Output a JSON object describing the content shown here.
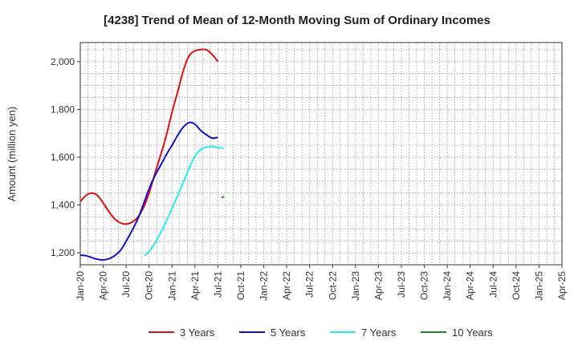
{
  "chart_data": {
    "type": "line",
    "title": "[4238]  Trend of Mean of 12-Month Moving Sum of Ordinary Incomes",
    "xlabel": "",
    "ylabel": "Amount (million yen)",
    "ylim": [
      1150,
      2080
    ],
    "yticks": [
      1200,
      1400,
      1600,
      1800,
      2000
    ],
    "ytick_labels": [
      "1,200",
      "1,400",
      "1,600",
      "1,800",
      "2,000"
    ],
    "xtick_labels": [
      "Jan-20",
      "Apr-20",
      "Jul-20",
      "Oct-20",
      "Jan-21",
      "Apr-21",
      "Jul-21",
      "Oct-21",
      "Jan-22",
      "Apr-22",
      "Jul-22",
      "Oct-22",
      "Jan-23",
      "Apr-23",
      "Jul-23",
      "Oct-23",
      "Jan-24",
      "Apr-24",
      "Jul-24",
      "Oct-24",
      "Jan-25",
      "Apr-25"
    ],
    "grid": true,
    "legend_position": "bottom",
    "series": [
      {
        "name": "3 Years",
        "color": "#dd1111",
        "points": [
          [
            0,
            1415
          ],
          [
            1,
            1440
          ],
          [
            2,
            1450
          ],
          [
            3,
            1440
          ],
          [
            4,
            1408
          ],
          [
            5,
            1372
          ],
          [
            6,
            1342
          ],
          [
            7,
            1325
          ],
          [
            8,
            1320
          ],
          [
            9,
            1328
          ],
          [
            10,
            1348
          ],
          [
            11,
            1388
          ],
          [
            12,
            1450
          ],
          [
            13,
            1530
          ],
          [
            14,
            1608
          ],
          [
            15,
            1690
          ],
          [
            16,
            1788
          ],
          [
            17,
            1875
          ],
          [
            18,
            1965
          ],
          [
            19,
            2025
          ],
          [
            20,
            2045
          ],
          [
            21,
            2050
          ],
          [
            22,
            2050
          ],
          [
            23,
            2030
          ],
          [
            24,
            2000
          ]
        ]
      },
      {
        "name": "5 Years",
        "color": "#1111cc",
        "points": [
          [
            0,
            1190
          ],
          [
            1,
            1188
          ],
          [
            2,
            1180
          ],
          [
            3,
            1173
          ],
          [
            4,
            1170
          ],
          [
            5,
            1175
          ],
          [
            6,
            1188
          ],
          [
            7,
            1210
          ],
          [
            8,
            1248
          ],
          [
            9,
            1292
          ],
          [
            10,
            1340
          ],
          [
            11,
            1402
          ],
          [
            12,
            1468
          ],
          [
            13,
            1522
          ],
          [
            14,
            1566
          ],
          [
            15,
            1610
          ],
          [
            16,
            1650
          ],
          [
            17,
            1692
          ],
          [
            18,
            1727
          ],
          [
            19,
            1745
          ],
          [
            20,
            1738
          ],
          [
            21,
            1712
          ],
          [
            22,
            1694
          ],
          [
            23,
            1680
          ],
          [
            24,
            1683
          ]
        ]
      },
      {
        "name": "7 Years",
        "color": "#22eeee",
        "points": [
          [
            11.2,
            1188
          ],
          [
            12,
            1205
          ],
          [
            13,
            1240
          ],
          [
            14,
            1283
          ],
          [
            15,
            1332
          ],
          [
            16,
            1385
          ],
          [
            17,
            1440
          ],
          [
            18,
            1498
          ],
          [
            19,
            1555
          ],
          [
            20,
            1605
          ],
          [
            21,
            1632
          ],
          [
            22,
            1642
          ],
          [
            23,
            1645
          ],
          [
            24,
            1640
          ],
          [
            25,
            1638
          ]
        ]
      },
      {
        "name": "10 Years",
        "color": "#228822",
        "points": [
          [
            24.6,
            1432
          ],
          [
            25.1,
            1434
          ]
        ]
      }
    ]
  }
}
